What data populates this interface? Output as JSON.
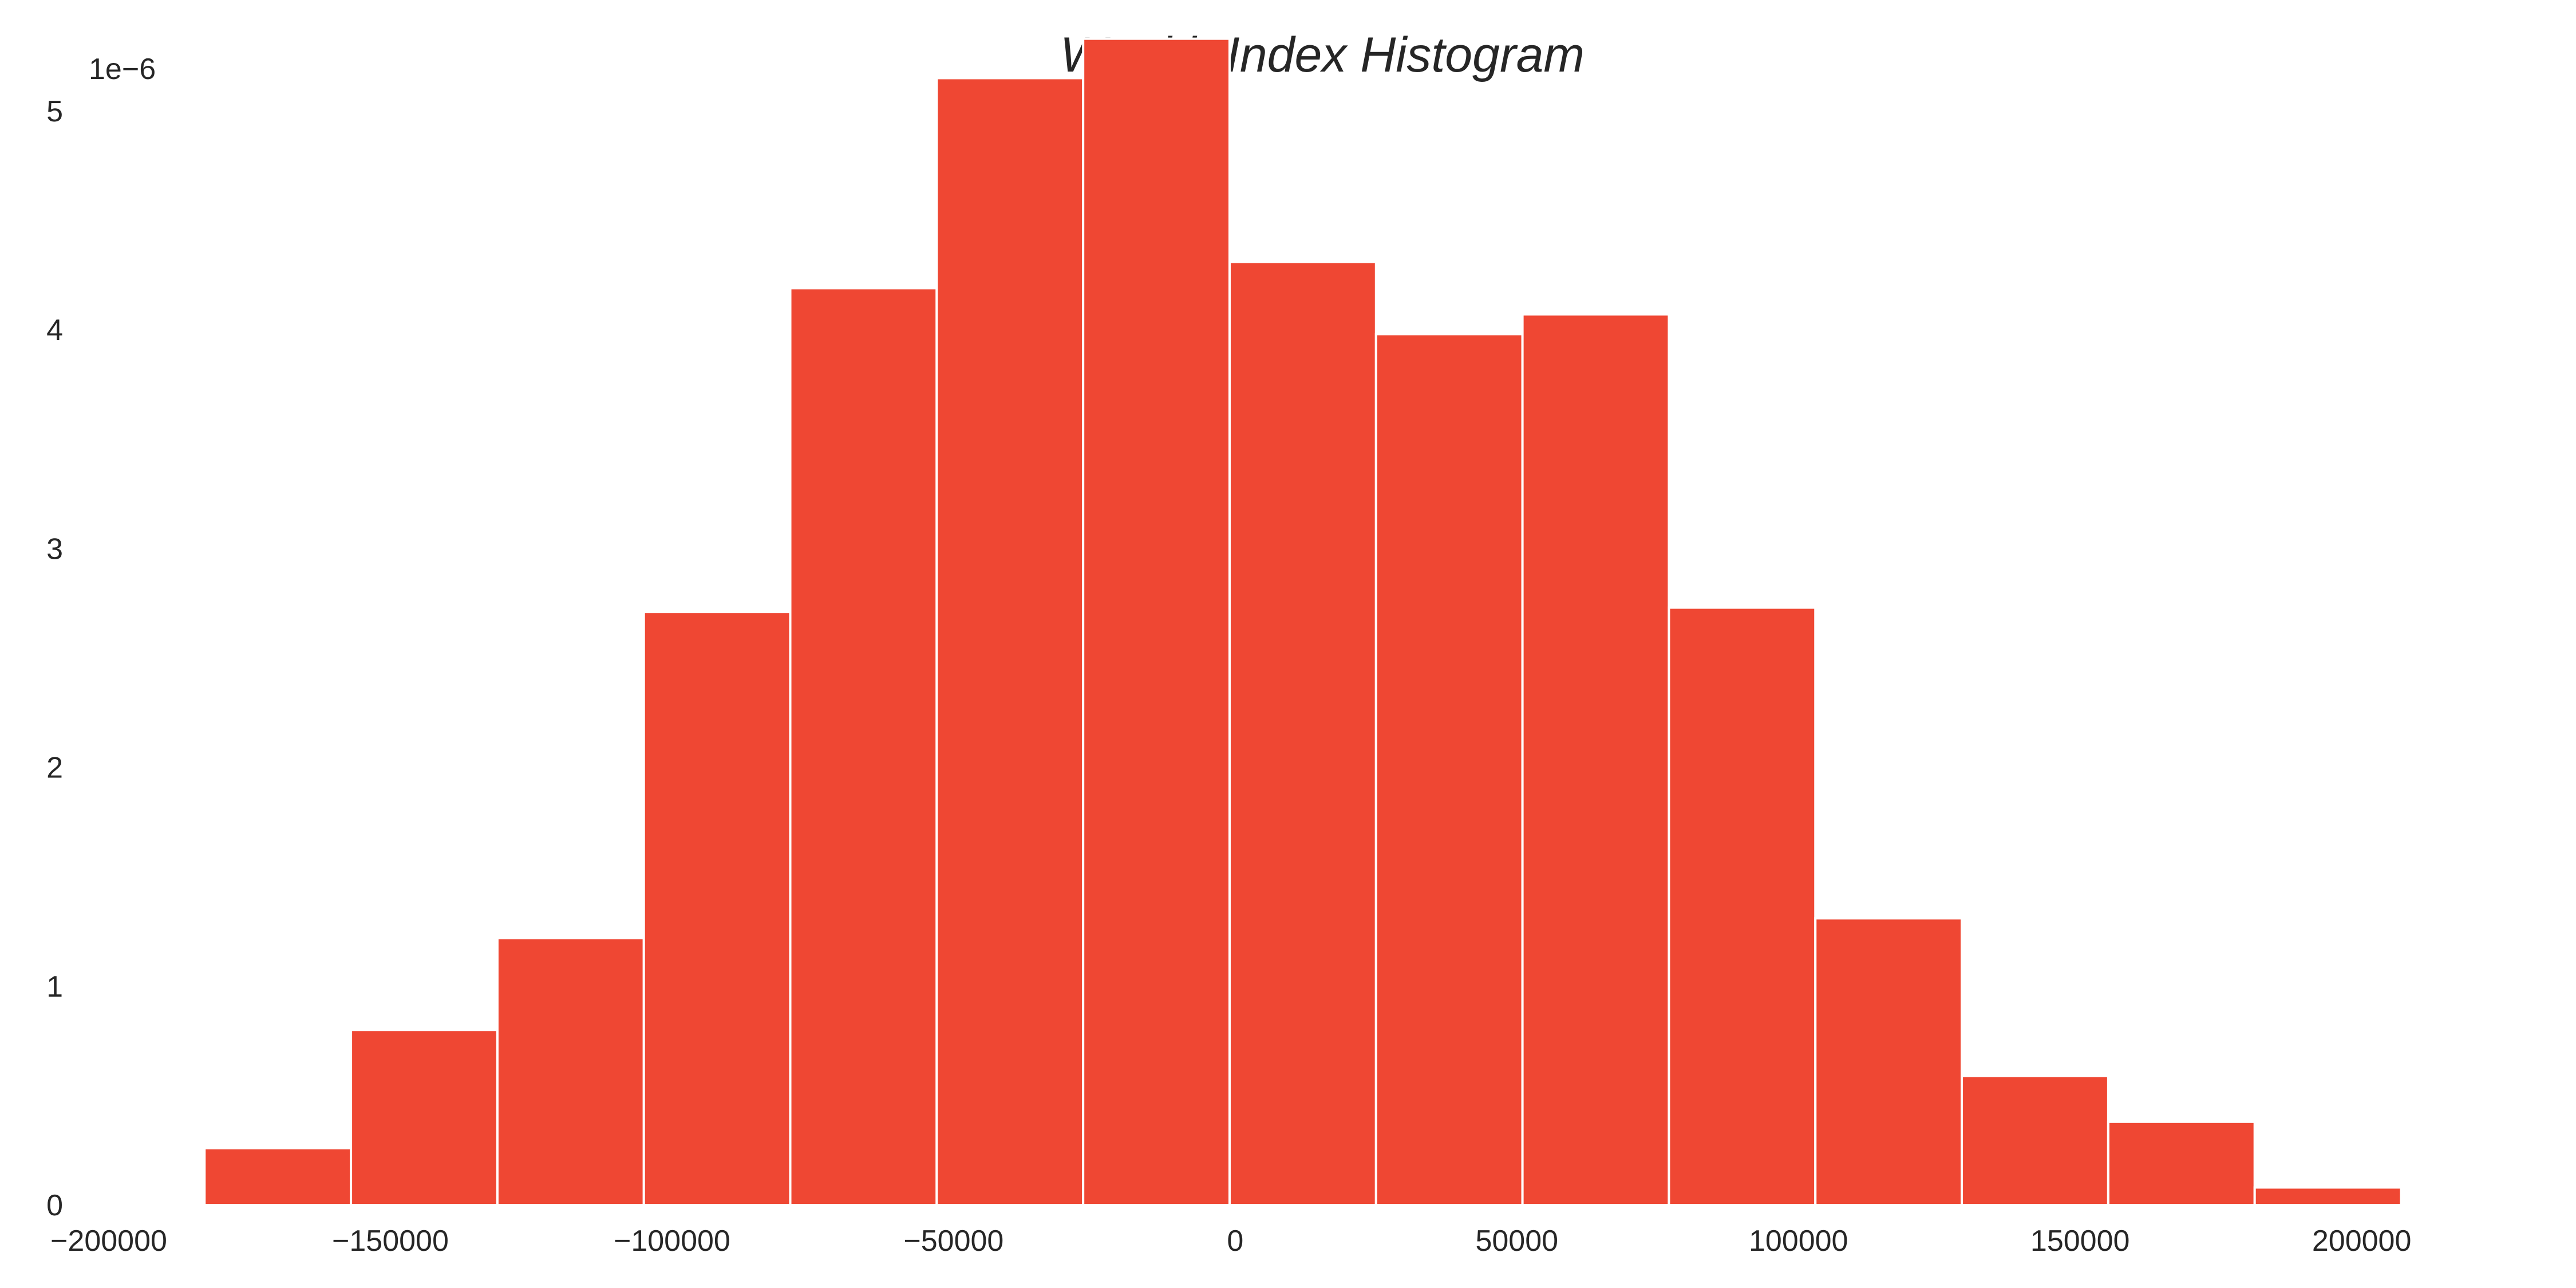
{
  "chart_data": {
    "type": "bar",
    "title": "Wealth Index Histogram",
    "xlabel": "",
    "ylabel": "",
    "y_offset_label": "1e−6",
    "bar_color": "#EF4733",
    "background": "#ffffff",
    "grid": false,
    "legend": "none",
    "xlim": [
      -200000,
      235000
    ],
    "ylim": [
      0,
      5.35
    ],
    "bin_edges": [
      -183000,
      -157000,
      -131000,
      -105000,
      -79000,
      -53000,
      -27000,
      -1000,
      25000,
      51000,
      77000,
      103000,
      129000,
      155000,
      181000,
      207000
    ],
    "values": [
      0.26,
      0.8,
      1.22,
      2.71,
      4.19,
      5.15,
      5.33,
      4.31,
      3.98,
      4.07,
      2.73,
      1.31,
      0.59,
      0.38,
      0.08
    ],
    "x_ticks": [
      {
        "value": -200000,
        "label": "−200000"
      },
      {
        "value": -150000,
        "label": "−150000"
      },
      {
        "value": -100000,
        "label": "−100000"
      },
      {
        "value": -50000,
        "label": "−50000"
      },
      {
        "value": 0,
        "label": "0"
      },
      {
        "value": 50000,
        "label": "50000"
      },
      {
        "value": 100000,
        "label": "100000"
      },
      {
        "value": 150000,
        "label": "150000"
      },
      {
        "value": 200000,
        "label": "200000"
      }
    ],
    "y_ticks": [
      {
        "value": 0,
        "label": "0"
      },
      {
        "value": 1,
        "label": "1"
      },
      {
        "value": 2,
        "label": "2"
      },
      {
        "value": 3,
        "label": "3"
      },
      {
        "value": 4,
        "label": "4"
      },
      {
        "value": 5,
        "label": "5"
      }
    ]
  }
}
